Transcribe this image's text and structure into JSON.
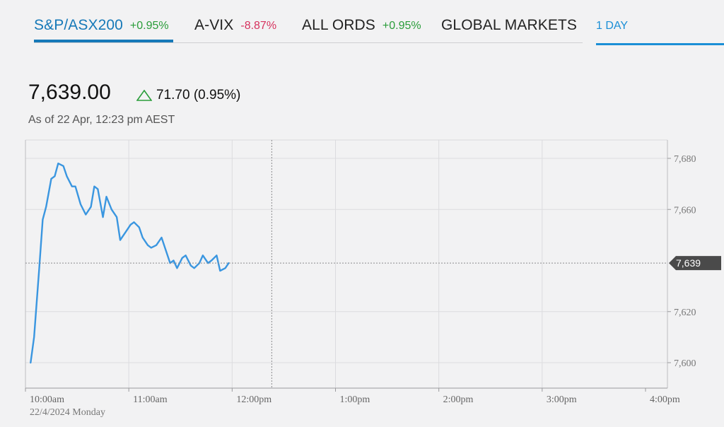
{
  "tabs": [
    {
      "name": "S&P/ASX200",
      "change": "+0.95%",
      "direction": "up",
      "active": true
    },
    {
      "name": "A-VIX",
      "change": "-8.87%",
      "direction": "down",
      "active": false
    },
    {
      "name": "ALL ORDS",
      "change": "+0.95%",
      "direction": "up",
      "active": false
    },
    {
      "name": "GLOBAL MARKETS",
      "change": "",
      "direction": "",
      "active": false
    }
  ],
  "range": {
    "label": "1 DAY"
  },
  "quote": {
    "price": "7,639.00",
    "change": "71.70 (0.95%)",
    "as_of": "As of 22 Apr, 12:23 pm AEST"
  },
  "colors": {
    "accent": "#1679b8",
    "line": "#3a96e0",
    "positive": "#2a9d3a",
    "negative": "#d6325e",
    "current_label_bg": "#4a4a4a"
  },
  "chart_data": {
    "type": "line",
    "title": "",
    "xlabel": "",
    "ylabel": "",
    "date_label": "22/4/2024 Monday",
    "x_ticks": [
      "10:00am",
      "11:00am",
      "12:00pm",
      "1:00pm",
      "2:00pm",
      "3:00pm",
      "4:00pm"
    ],
    "y_ticks": [
      7600,
      7620,
      7660,
      7680
    ],
    "y_tick_labels": [
      "7,600",
      "7,620",
      "7,660",
      "7,680"
    ],
    "ylim": [
      7590,
      7688
    ],
    "xlim": [
      "10:00",
      "16:00"
    ],
    "grid": true,
    "current_value": 7639,
    "current_label": "7,639",
    "current_time": "12:23",
    "series": [
      {
        "values": [
          [
            "10:03",
            7600
          ],
          [
            "10:05",
            7610
          ],
          [
            "10:08",
            7637
          ],
          [
            "10:10",
            7656
          ],
          [
            "10:12",
            7661
          ],
          [
            "10:15",
            7672
          ],
          [
            "10:17",
            7673
          ],
          [
            "10:19",
            7678
          ],
          [
            "10:22",
            7677
          ],
          [
            "10:24",
            7673
          ],
          [
            "10:27",
            7669
          ],
          [
            "10:29",
            7669
          ],
          [
            "10:32",
            7662
          ],
          [
            "10:35",
            7658
          ],
          [
            "10:38",
            7661
          ],
          [
            "10:40",
            7669
          ],
          [
            "10:42",
            7668
          ],
          [
            "10:45",
            7657
          ],
          [
            "10:47",
            7665
          ],
          [
            "10:50",
            7660
          ],
          [
            "10:53",
            7657
          ],
          [
            "10:55",
            7648
          ],
          [
            "10:58",
            7651
          ],
          [
            "11:01",
            7654
          ],
          [
            "11:03",
            7655
          ],
          [
            "11:06",
            7653
          ],
          [
            "11:08",
            7649
          ],
          [
            "11:11",
            7646
          ],
          [
            "11:13",
            7645
          ],
          [
            "11:16",
            7646
          ],
          [
            "11:19",
            7649
          ],
          [
            "11:21",
            7645
          ],
          [
            "11:24",
            7639
          ],
          [
            "11:26",
            7640
          ],
          [
            "11:28",
            7637
          ],
          [
            "11:31",
            7641
          ],
          [
            "11:33",
            7642
          ],
          [
            "11:36",
            7638
          ],
          [
            "11:38",
            7637
          ],
          [
            "11:41",
            7639
          ],
          [
            "11:43",
            7642
          ],
          [
            "11:46",
            7639
          ],
          [
            "11:48",
            7640
          ],
          [
            "11:51",
            7642
          ],
          [
            "11:53",
            7636
          ],
          [
            "11:56",
            7637
          ],
          [
            "11:58",
            7639
          ]
        ]
      }
    ]
  }
}
